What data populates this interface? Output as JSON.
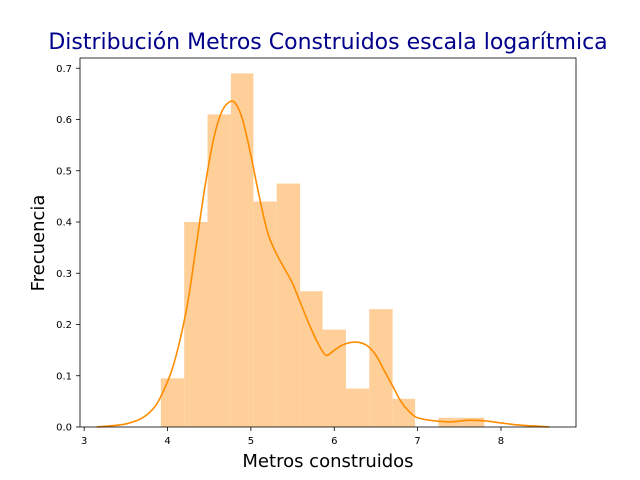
{
  "chart_data": {
    "type": "bar",
    "title": "Distribución Metros Construidos escala logarítmica",
    "xlabel": "Metros construidos",
    "ylabel": "Frecuencia",
    "xlim": [
      2.95,
      8.9
    ],
    "ylim": [
      0.0,
      0.72
    ],
    "xticks": [
      3,
      4,
      5,
      6,
      7,
      8
    ],
    "yticks": [
      0.0,
      0.1,
      0.2,
      0.3,
      0.4,
      0.5,
      0.6,
      0.7
    ],
    "grid": false,
    "series": [
      {
        "kind": "histogram",
        "color": "#ffcf99",
        "bins": [
          {
            "x0": 3.92,
            "x1": 4.2,
            "value": 0.095
          },
          {
            "x0": 4.2,
            "x1": 4.48,
            "value": 0.4
          },
          {
            "x0": 4.48,
            "x1": 4.76,
            "value": 0.61
          },
          {
            "x0": 4.76,
            "x1": 5.03,
            "value": 0.69
          },
          {
            "x0": 5.03,
            "x1": 5.31,
            "value": 0.44
          },
          {
            "x0": 5.31,
            "x1": 5.59,
            "value": 0.475
          },
          {
            "x0": 5.59,
            "x1": 5.86,
            "value": 0.265
          },
          {
            "x0": 5.86,
            "x1": 6.14,
            "value": 0.19
          },
          {
            "x0": 6.14,
            "x1": 6.42,
            "value": 0.075
          },
          {
            "x0": 6.42,
            "x1": 6.7,
            "value": 0.23
          },
          {
            "x0": 6.7,
            "x1": 6.97,
            "value": 0.055
          },
          {
            "x0": 6.97,
            "x1": 7.25,
            "value": 0.0
          },
          {
            "x0": 7.25,
            "x1": 7.53,
            "value": 0.018
          },
          {
            "x0": 7.53,
            "x1": 7.8,
            "value": 0.018
          }
        ]
      },
      {
        "kind": "kde",
        "color": "#ff8c00",
        "x": [
          3.15,
          3.3,
          3.5,
          3.7,
          3.85,
          3.95,
          4.05,
          4.15,
          4.25,
          4.35,
          4.45,
          4.55,
          4.65,
          4.75,
          4.82,
          4.9,
          5.0,
          5.1,
          5.2,
          5.3,
          5.4,
          5.5,
          5.6,
          5.7,
          5.8,
          5.9,
          6.0,
          6.1,
          6.2,
          6.3,
          6.4,
          6.5,
          6.6,
          6.7,
          6.8,
          6.9,
          7.0,
          7.2,
          7.4,
          7.6,
          7.8,
          8.0,
          8.2,
          8.4,
          8.58
        ],
        "y": [
          0.0,
          0.002,
          0.006,
          0.018,
          0.04,
          0.07,
          0.11,
          0.17,
          0.25,
          0.36,
          0.47,
          0.56,
          0.615,
          0.635,
          0.63,
          0.6,
          0.53,
          0.45,
          0.38,
          0.34,
          0.31,
          0.28,
          0.24,
          0.2,
          0.165,
          0.14,
          0.15,
          0.16,
          0.165,
          0.165,
          0.158,
          0.14,
          0.11,
          0.08,
          0.05,
          0.03,
          0.018,
          0.012,
          0.01,
          0.013,
          0.012,
          0.008,
          0.004,
          0.002,
          0.0
        ]
      }
    ]
  }
}
